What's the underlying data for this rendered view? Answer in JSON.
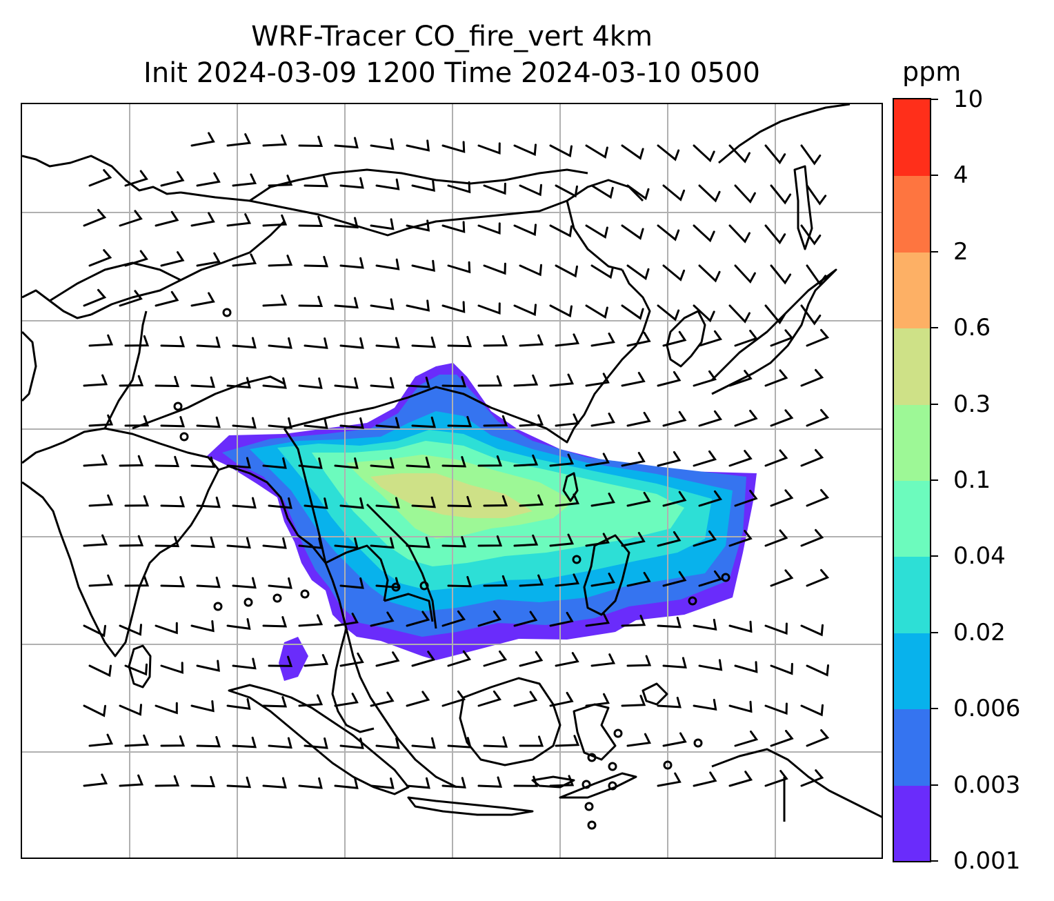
{
  "title": {
    "line1": "WRF-Tracer CO_fire_vert 4km",
    "line2": "Init 2024-03-09 1200 Time 2024-03-10 0500"
  },
  "colorbar": {
    "unit": "ppm",
    "levels": [
      "0.001",
      "0.003",
      "0.006",
      "0.02",
      "0.04",
      "0.1",
      "0.3",
      "0.6",
      "2",
      "4",
      "10"
    ],
    "colors": [
      "#6a2cfb",
      "#3574f0",
      "#08b2ec",
      "#2ddfd6",
      "#6cfbbd",
      "#9df896",
      "#cee187",
      "#fdb065",
      "#fe7540",
      "#ff2f1a"
    ]
  },
  "map": {
    "gridlines": true,
    "features": [
      "coastlines",
      "country-borders",
      "wind-barbs",
      "tracer-filled-contours"
    ]
  }
}
